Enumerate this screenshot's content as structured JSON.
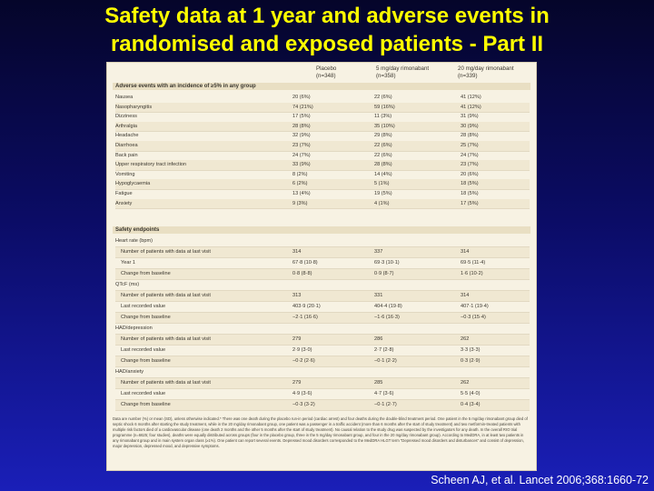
{
  "slide": {
    "title_line1": "Safety data at 1 year and adverse events in",
    "title_line2": "randomised and exposed patients - Part II",
    "citation": "Scheen AJ, et al. Lancet 2006;368:1660-72"
  },
  "table": {
    "columns": [
      {
        "name": "Placebo",
        "n": "(n=348)"
      },
      {
        "name": "5 mg/day rimonabant",
        "n": "(n=358)"
      },
      {
        "name": "20 mg/day rimonabant",
        "n": "(n=339)"
      }
    ],
    "ae_header": "Adverse events with an incidence of ≥5% in any group",
    "adverse_events": [
      {
        "label": "Nausea",
        "v": [
          "20 (6%)",
          "22 (6%)",
          "41 (12%)"
        ]
      },
      {
        "label": "Nasopharyngitis",
        "v": [
          "74 (21%)",
          "59 (16%)",
          "41 (12%)"
        ]
      },
      {
        "label": "Dizziness",
        "v": [
          "17 (5%)",
          "11 (3%)",
          "31 (9%)"
        ]
      },
      {
        "label": "Arthralgia",
        "v": [
          "28 (8%)",
          "35 (10%)",
          "30 (9%)"
        ]
      },
      {
        "label": "Headache",
        "v": [
          "32 (9%)",
          "29 (8%)",
          "28 (8%)"
        ]
      },
      {
        "label": "Diarrhoea",
        "v": [
          "23 (7%)",
          "22 (6%)",
          "25 (7%)"
        ]
      },
      {
        "label": "Back pain",
        "v": [
          "24 (7%)",
          "22 (6%)",
          "24 (7%)"
        ]
      },
      {
        "label": "Upper respiratory tract infection",
        "v": [
          "33 (9%)",
          "28 (8%)",
          "23 (7%)"
        ]
      },
      {
        "label": "Vomiting",
        "v": [
          "8 (2%)",
          "14 (4%)",
          "20 (6%)"
        ]
      },
      {
        "label": "Hypoglycaemia",
        "v": [
          "6 (2%)",
          "5 (1%)",
          "18 (5%)"
        ]
      },
      {
        "label": "Fatigue",
        "v": [
          "13 (4%)",
          "19 (5%)",
          "18 (5%)"
        ]
      },
      {
        "label": "Anxiety",
        "v": [
          "9 (3%)",
          "4 (1%)",
          "17 (5%)"
        ]
      }
    ],
    "safety_header": "Safety endpoints",
    "safety_rows": [
      {
        "label": "Heart rate (bpm)",
        "indent": false,
        "v": [
          "",
          "",
          ""
        ]
      },
      {
        "label": "Number of patients with data at last visit",
        "indent": true,
        "v": [
          "314",
          "337",
          "314"
        ]
      },
      {
        "label": "Year 1",
        "indent": true,
        "v": [
          "67·8 (10·8)",
          "69·3 (10·1)",
          "69·5 (11·4)"
        ]
      },
      {
        "label": "Change from baseline",
        "indent": true,
        "v": [
          "0·8 (8·8)",
          "0·9 (8·7)",
          "1·6 (10·2)"
        ]
      },
      {
        "label": "QTcF (ms)",
        "indent": false,
        "v": [
          "",
          "",
          ""
        ]
      },
      {
        "label": "Number of patients with data at last visit",
        "indent": true,
        "v": [
          "313",
          "331",
          "314"
        ]
      },
      {
        "label": "Last recorded value",
        "indent": true,
        "v": [
          "403·9 (20·1)",
          "404·4 (19·8)",
          "407·1 (19·4)"
        ]
      },
      {
        "label": "Change from baseline",
        "indent": true,
        "v": [
          "−2·1 (16·6)",
          "−1·6 (16·3)",
          "−0·3 (15·4)"
        ]
      },
      {
        "label": "HAD/depression",
        "indent": false,
        "v": [
          "",
          "",
          ""
        ]
      },
      {
        "label": "Number of patients with data at last visit",
        "indent": true,
        "v": [
          "279",
          "286",
          "262"
        ]
      },
      {
        "label": "Last recorded value",
        "indent": true,
        "v": [
          "2·9 (3·0)",
          "2·7 (2·8)",
          "3·3 (3·3)"
        ]
      },
      {
        "label": "Change from baseline",
        "indent": true,
        "v": [
          "−0·2 (2·6)",
          "−0·1 (2·2)",
          "0·3 (2·9)"
        ]
      },
      {
        "label": "HAD/anxiety",
        "indent": false,
        "v": [
          "",
          "",
          ""
        ]
      },
      {
        "label": "Number of patients with data at last visit",
        "indent": true,
        "v": [
          "279",
          "285",
          "262"
        ]
      },
      {
        "label": "Last recorded value",
        "indent": true,
        "v": [
          "4·9 (3·6)",
          "4·7 (3·6)",
          "5·5 (4·0)"
        ]
      },
      {
        "label": "Change from baseline",
        "indent": true,
        "v": [
          "−0·3 (3·2)",
          "−0·1 (2·7)",
          "0·4 (3·4)"
        ]
      }
    ],
    "footnote": "Data are number (%) or mean (SD), unless otherwise indicated.* There was one death during the placebo run-in period (cardiac arrest) and four deaths during the double-blind treatment period. One patient in the 5 mg/day rimonabant group died of septic shock 6 months after starting the study treatment, while in the 20 mg/day rimonabant group, one patient was a passenger in a traffic accident (more than 6 months after the start of study treatment) and two metformin-treated patients with multiple risk factors died of a cardiovascular disease (one death 2 months and the other 5 months after the start of study treatment). No causal relation to the study drug was suspected by the investigators for any death. In the overall RIO trial programme (n=6625; four studies), deaths were equally distributed across groups (four in the placebo group, three in the 5 mg/day rimonabant group, and four in the 20 mg/day rimonabant group). According to MedDRA, in at least two patients in any rimonabant group and in main system organ class (≥1%). One patient can report several events. Depressed mood disorders corresponded to the MedDRA HLGT term “Depressed mood disorders and disturbances” and consist of depression, major depression, depressed mood, and depressive symptoms."
  }
}
